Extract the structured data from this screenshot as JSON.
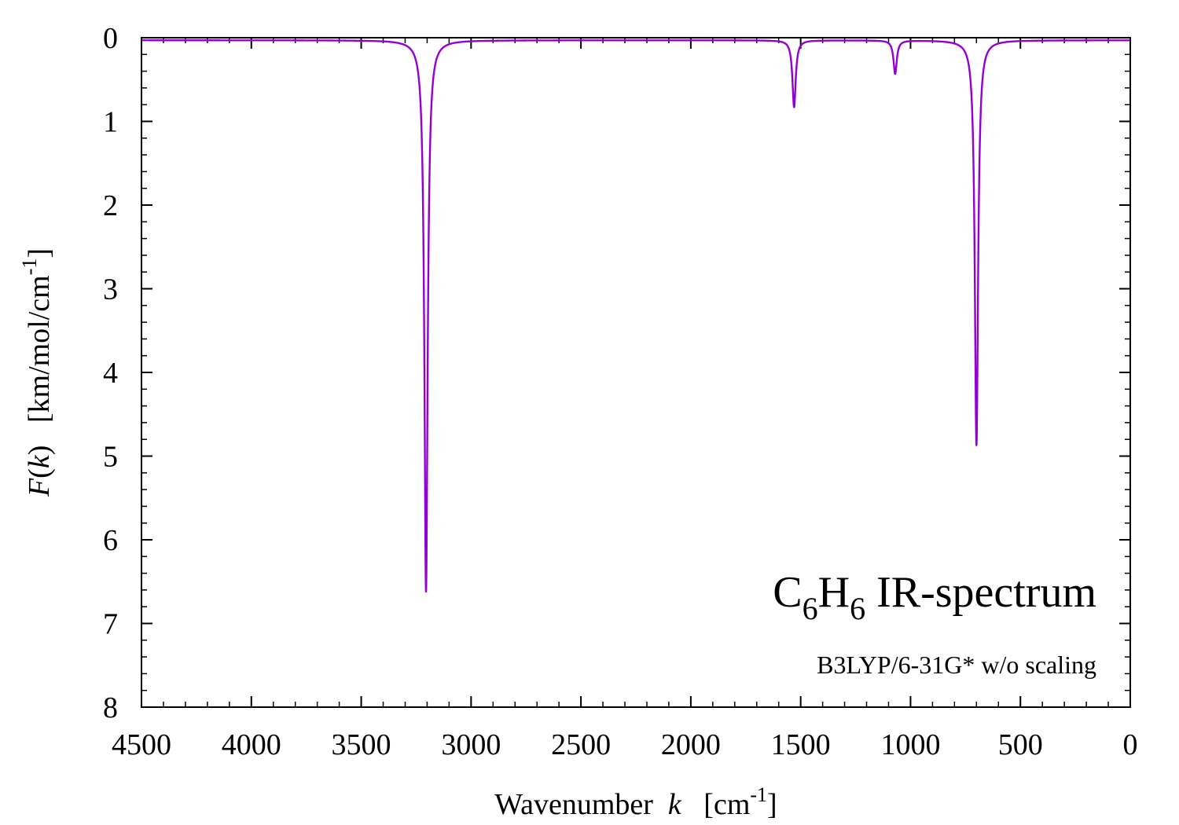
{
  "chart_data": {
    "type": "line",
    "title": {
      "prefix": "C",
      "sub1": "6",
      "mid": "H",
      "sub2": "6",
      "rest": " IR-spectrum"
    },
    "subtitle": "B3LYP/6-31G* w/o scaling",
    "xlabel": {
      "text": "Wavenumber",
      "var": "k",
      "unit_open": "[cm",
      "unit_sup": "-1",
      "unit_close": "]"
    },
    "ylabel": {
      "func": "F",
      "paren_open": "(",
      "var": "k",
      "paren_close": ")",
      "unit_open": "[km/mol/cm",
      "unit_sup": "-1",
      "unit_close": "]"
    },
    "xlim": [
      4500,
      0
    ],
    "ylim": [
      0,
      8
    ],
    "y_inverted": true,
    "xticks": [
      4500,
      4000,
      3500,
      3000,
      2500,
      2000,
      1500,
      1000,
      500,
      0
    ],
    "yticks": [
      0,
      1,
      2,
      3,
      4,
      5,
      6,
      7,
      8
    ],
    "x_minor_step": 100,
    "y_minor_step": 0.2,
    "baseline": 0.03,
    "line_color": "#9400d3",
    "series": [
      {
        "peaks": [
          {
            "x": 3205,
            "y": 6.62,
            "width": 9
          },
          {
            "x": 1530,
            "y": 0.83,
            "width": 9
          },
          {
            "x": 1070,
            "y": 0.43,
            "width": 9
          },
          {
            "x": 700,
            "y": 4.87,
            "width": 9
          }
        ]
      }
    ]
  }
}
